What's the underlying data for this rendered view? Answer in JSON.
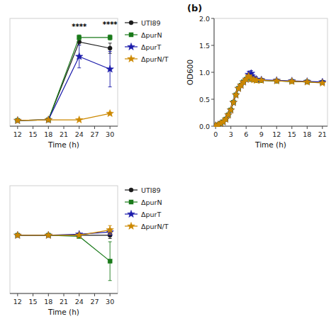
{
  "chart_data": [
    {
      "type": "line",
      "xlabel": "Time (h)",
      "x": [
        12,
        18,
        24,
        30
      ],
      "xlim": [
        10.5,
        31.5
      ],
      "ylim": [
        -0.05,
        1.65
      ],
      "xticks": [
        12,
        15,
        18,
        21,
        24,
        27,
        30
      ],
      "tick_labels": "x",
      "legend": "right",
      "series": [
        {
          "name": "UTI89",
          "color": "#1a1a1a",
          "marker": "circle",
          "values": [
            0.04,
            0.05,
            1.28,
            1.18
          ],
          "errors": [
            0.005,
            0.005,
            0.05,
            0.08
          ]
        },
        {
          "name": "ΔpurN",
          "color": "#1a7a1a",
          "marker": "square",
          "values": [
            0.04,
            0.05,
            1.35,
            1.35
          ],
          "errors": [
            0.005,
            0.005,
            0.04,
            0.04
          ]
        },
        {
          "name": "ΔpurT",
          "color": "#1a1aaa",
          "marker": "star",
          "values": [
            0.04,
            0.05,
            1.05,
            0.85
          ],
          "errors": [
            0.005,
            0.005,
            0.18,
            0.28
          ]
        },
        {
          "name": "ΔpurN/T",
          "color": "#cc8800",
          "marker": "star",
          "values": [
            0.04,
            0.05,
            0.05,
            0.15
          ],
          "errors": [
            0.005,
            0.005,
            0.01,
            0.02
          ]
        }
      ],
      "annotations": [
        {
          "text": "****",
          "x": 24,
          "y": 1.48
        },
        {
          "text": "****",
          "x": 30,
          "y": 1.52
        }
      ]
    },
    {
      "type": "line",
      "title": "(b)",
      "xlabel": "Time (h)",
      "ylabel": "OD600",
      "x": [
        0,
        0.5,
        1,
        1.5,
        2,
        2.5,
        3,
        3.5,
        4,
        4.5,
        5,
        5.5,
        6,
        6.5,
        7,
        7.5,
        8,
        9,
        12,
        15,
        18,
        21
      ],
      "xlim": [
        -0.3,
        22
      ],
      "ylim": [
        0.0,
        2.0
      ],
      "xticks": [
        0,
        3,
        6,
        9,
        12,
        15,
        18,
        21
      ],
      "yticks": [
        {
          "value": 0.0,
          "label": "0.0"
        },
        0.5,
        {
          "value": 1.0,
          "label": "1.0"
        },
        1.5,
        {
          "value": 2.0,
          "label": "2.0"
        }
      ],
      "series": [
        {
          "name": "UTI89",
          "color": "#1a1a1a",
          "marker": "circle",
          "values": [
            0.01,
            0.025,
            0.05,
            0.08,
            0.13,
            0.21,
            0.3,
            0.44,
            0.58,
            0.7,
            0.76,
            0.82,
            0.87,
            0.92,
            0.88,
            0.86,
            0.85,
            0.85,
            0.84,
            0.83,
            0.82,
            0.82
          ],
          "errors": [
            0,
            0,
            0,
            0,
            0,
            0,
            0,
            0,
            0,
            0,
            0,
            0,
            0,
            0,
            0.05,
            0.03,
            0.03,
            0.02,
            0.02,
            0.02,
            0.02,
            0.02
          ]
        },
        {
          "name": "ΔpurN",
          "color": "#1a7a1a",
          "marker": "square",
          "values": [
            0.01,
            0.025,
            0.05,
            0.08,
            0.13,
            0.21,
            0.3,
            0.44,
            0.58,
            0.7,
            0.76,
            0.82,
            0.87,
            0.92,
            0.88,
            0.86,
            0.85,
            0.85,
            0.84,
            0.83,
            0.82,
            0.81
          ],
          "errors": [
            0,
            0,
            0,
            0,
            0,
            0,
            0,
            0,
            0,
            0,
            0,
            0,
            0,
            0,
            0.04,
            0.03,
            0.03,
            0.02,
            0.02,
            0.02,
            0.02,
            0.02
          ]
        },
        {
          "name": "ΔpurT",
          "color": "#1a1aaa",
          "marker": "star",
          "values": [
            0.01,
            0.025,
            0.05,
            0.08,
            0.13,
            0.21,
            0.3,
            0.44,
            0.58,
            0.7,
            0.76,
            0.82,
            0.87,
            0.96,
            0.98,
            0.9,
            0.87,
            0.86,
            0.85,
            0.84,
            0.83,
            0.82
          ],
          "errors": [
            0,
            0,
            0,
            0,
            0,
            0,
            0,
            0,
            0,
            0,
            0,
            0,
            0,
            0.06,
            0.05,
            0.05,
            0.04,
            0.03,
            0.02,
            0.02,
            0.02,
            0.02
          ]
        },
        {
          "name": "ΔpurN/T",
          "color": "#cc8800",
          "marker": "star",
          "values": [
            0.01,
            0.025,
            0.05,
            0.08,
            0.13,
            0.21,
            0.3,
            0.44,
            0.58,
            0.7,
            0.76,
            0.82,
            0.87,
            0.93,
            0.88,
            0.86,
            0.85,
            0.85,
            0.84,
            0.83,
            0.82,
            0.8
          ],
          "errors": [
            0,
            0,
            0,
            0,
            0,
            0,
            0,
            0,
            0,
            0,
            0,
            0,
            0,
            0,
            0.04,
            0.03,
            0.03,
            0.02,
            0.02,
            0.02,
            0.02,
            0.02
          ]
        }
      ]
    },
    {
      "type": "line",
      "xlabel": "Time (h)",
      "x": [
        12,
        18,
        24,
        30
      ],
      "xlim": [
        10.5,
        31.5
      ],
      "ylim": [
        0.55,
        1.05
      ],
      "xticks": [
        12,
        15,
        18,
        21,
        24,
        27,
        30
      ],
      "tick_labels": "x",
      "legend": "right",
      "series": [
        {
          "name": "UTI89",
          "color": "#1a1a1a",
          "marker": "circle",
          "values": [
            0.82,
            0.82,
            0.82,
            0.82
          ],
          "errors": [
            0.005,
            0.005,
            0.005,
            0.015
          ]
        },
        {
          "name": "ΔpurN",
          "color": "#1a7a1a",
          "marker": "square",
          "values": [
            0.82,
            0.82,
            0.815,
            0.7
          ],
          "errors": [
            0.005,
            0.005,
            0.005,
            0.09
          ]
        },
        {
          "name": "ΔpurT",
          "color": "#1a1aaa",
          "marker": "star",
          "values": [
            0.82,
            0.82,
            0.825,
            0.835
          ],
          "errors": [
            0.005,
            0.005,
            0.005,
            0.015
          ]
        },
        {
          "name": "ΔpurN/T",
          "color": "#cc8800",
          "marker": "star",
          "values": [
            0.82,
            0.82,
            0.82,
            0.845
          ],
          "errors": [
            0.005,
            0.005,
            0.005,
            0.02
          ]
        }
      ]
    }
  ]
}
